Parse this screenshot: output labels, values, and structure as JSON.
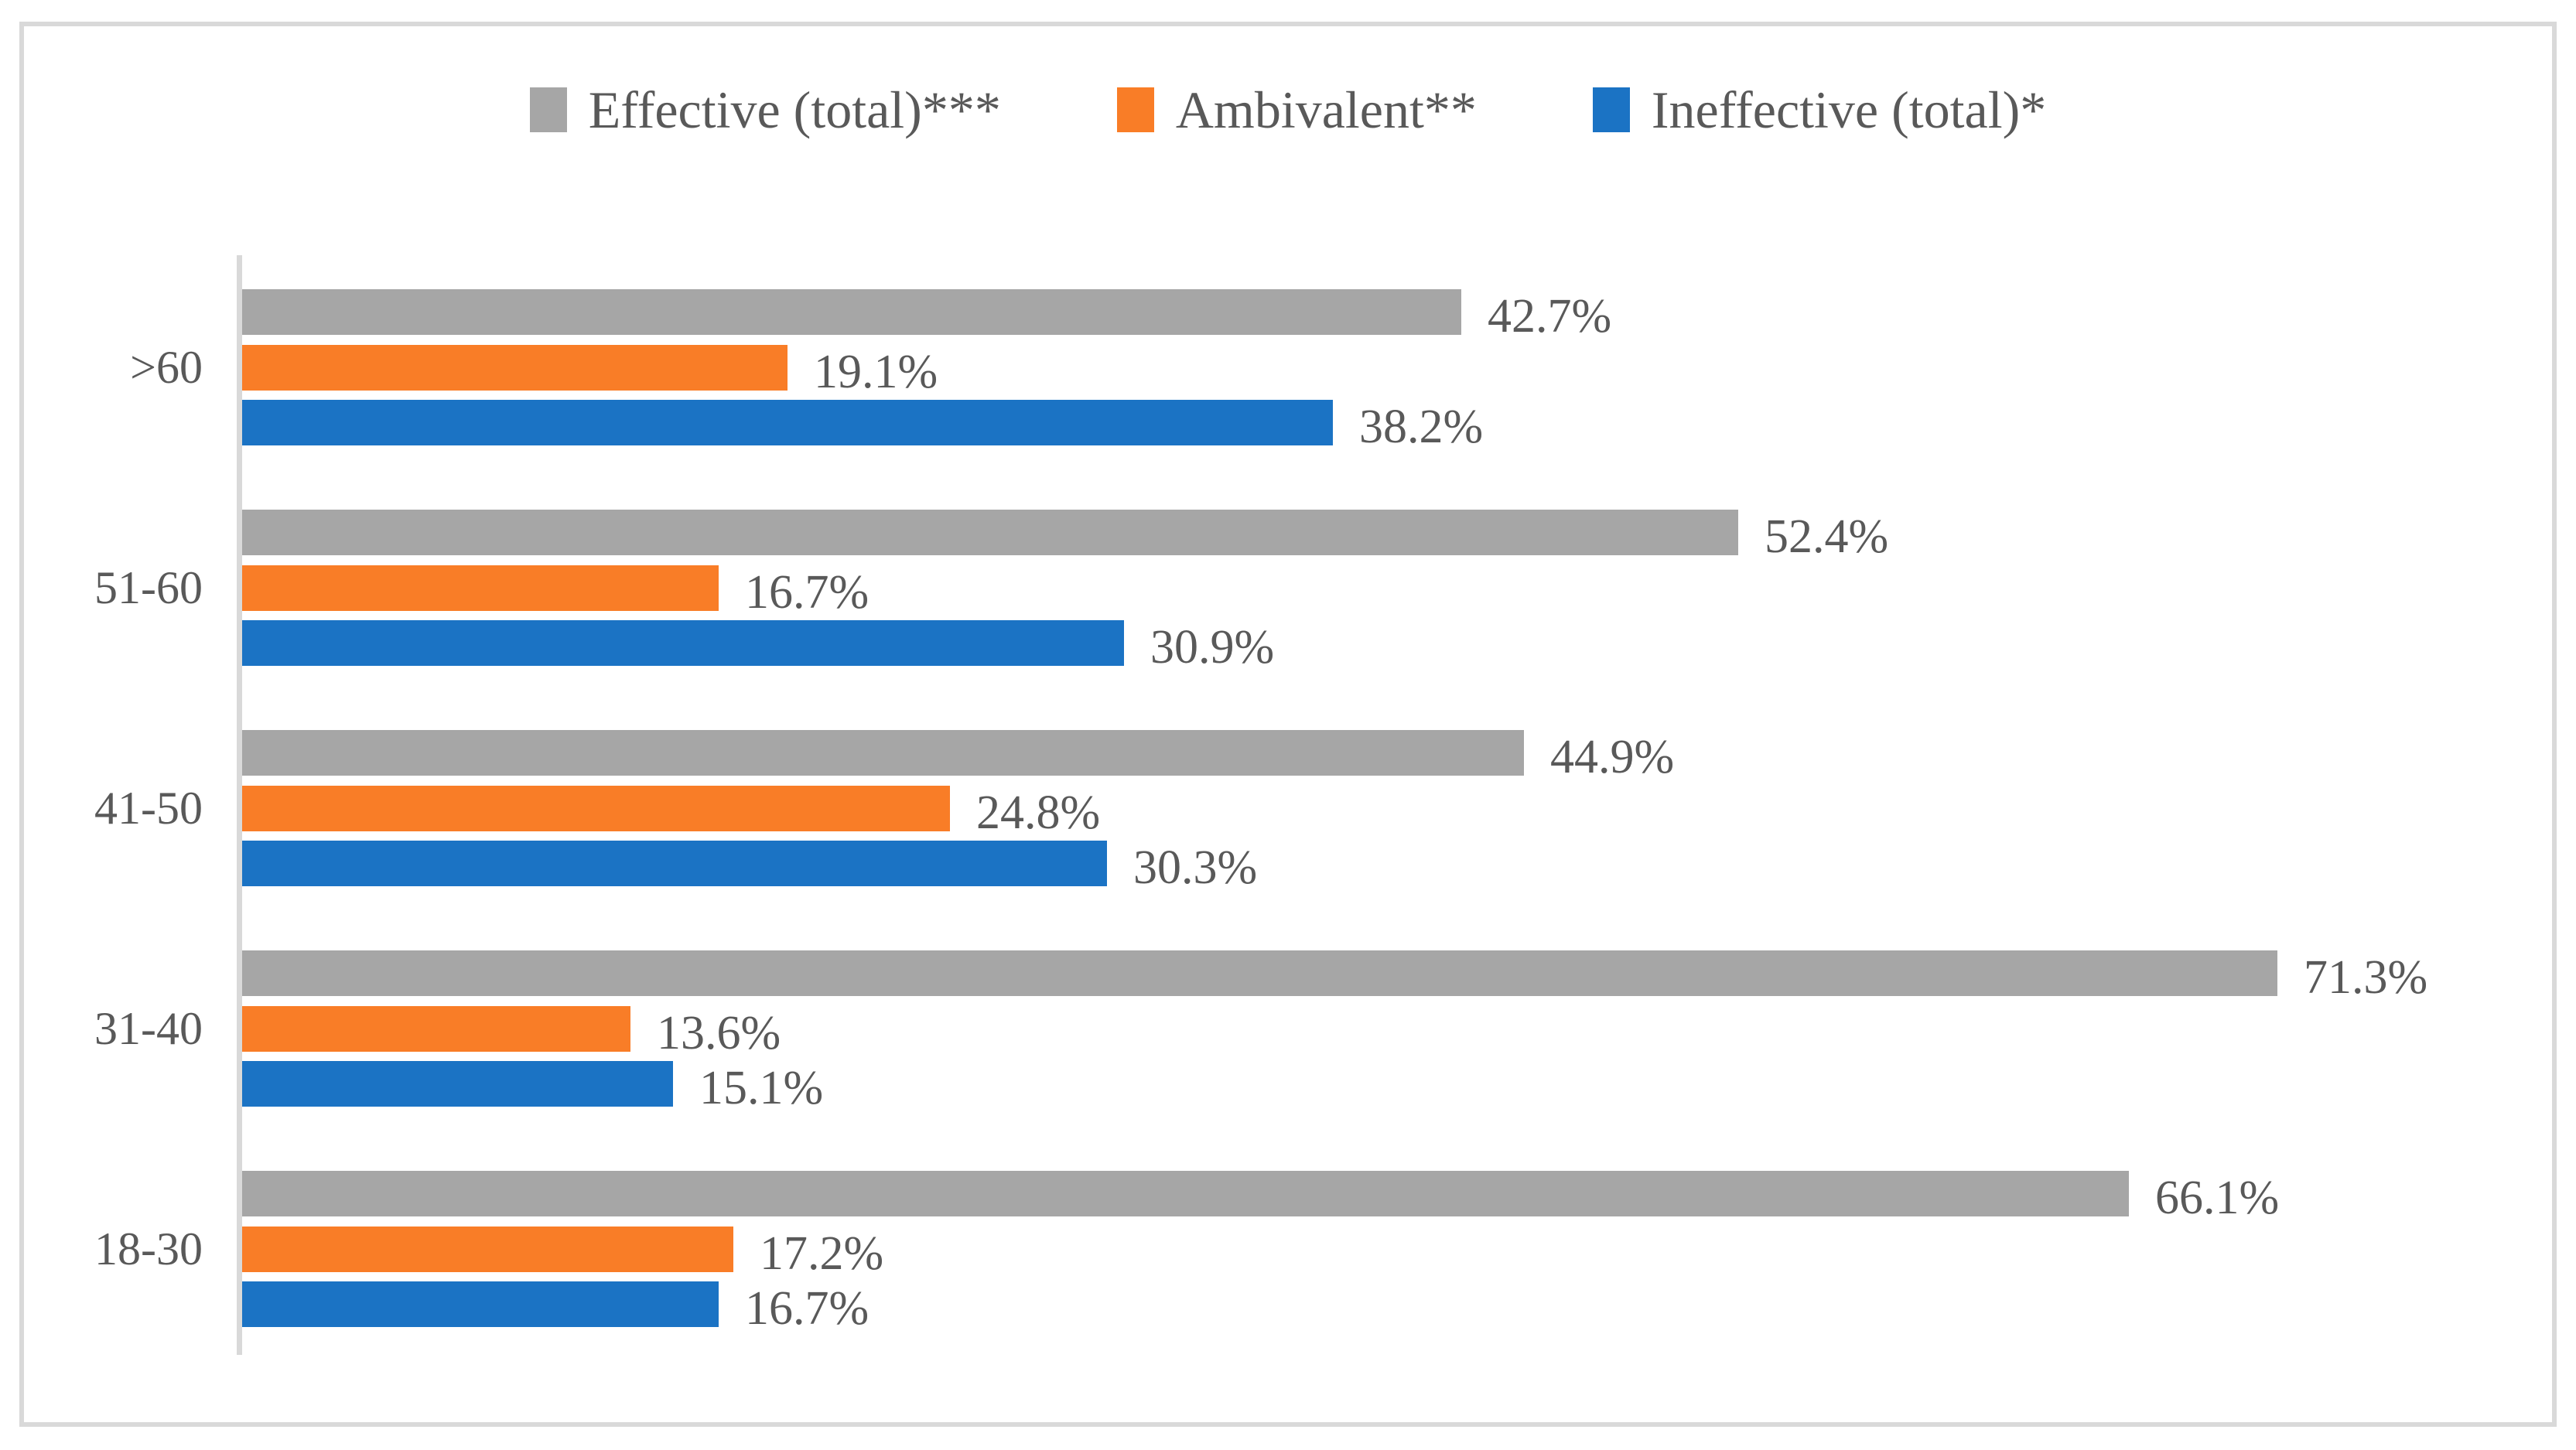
{
  "figure": {
    "background": "#FFFFFF",
    "frame_border_color": "#D9D9D9",
    "axis_color": "#D9D9D9",
    "text_color": "#595959"
  },
  "legend": {
    "position": "top-center",
    "items": [
      {
        "label": "Effective (total)***",
        "color": "#A6A6A6"
      },
      {
        "label": "Ambivalent**",
        "color": "#F97D27"
      },
      {
        "label": "Ineffective (total)*",
        "color": "#1B73C4"
      }
    ]
  },
  "chart_data": {
    "type": "bar",
    "orientation": "horizontal",
    "title": "",
    "xlabel": "",
    "ylabel": "",
    "grid": false,
    "legend_position": "top",
    "xlim": [
      0,
      80
    ],
    "category_order": "top-to-bottom",
    "categories": [
      ">60",
      "51-60",
      "41-50",
      "31-40",
      "18-30"
    ],
    "series": [
      {
        "name": "Effective (total)***",
        "color": "#A6A6A6",
        "values": [
          42.7,
          52.4,
          44.9,
          71.3,
          66.1
        ]
      },
      {
        "name": "Ambivalent**",
        "color": "#F97D27",
        "values": [
          19.1,
          16.7,
          24.8,
          13.6,
          17.2
        ]
      },
      {
        "name": "Ineffective (total)*",
        "color": "#1B73C4",
        "values": [
          38.2,
          30.9,
          30.3,
          15.1,
          16.7
        ]
      }
    ],
    "data_labels": {
      "decimals": 1,
      "suffix": "%"
    }
  }
}
